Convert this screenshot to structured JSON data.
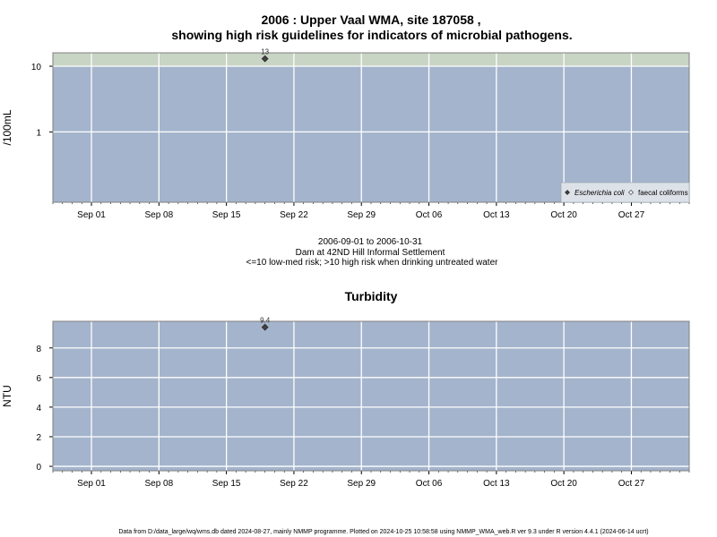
{
  "page": {
    "title_line1": "2006 : Upper Vaal WMA, site 187058 ,",
    "title_line2": "showing high risk guidelines for indicators of microbial pathogens.",
    "subtitle_line1": "2006-09-01 to 2006-10-31",
    "subtitle_line2": "Dam at 42ND Hill Informal Settlement",
    "subtitle_line3": "<=10 low-med risk; >10 high risk when drinking untreated water",
    "footer": "Data from D:/data_large/wq/wms.db dated 2024-08-27, mainly NMMP programme. Plotted on 2024-10-25 10:58:58 using NMMP_WMA_web.R ver 9.3 under R version 4.4.1 (2024-06-14 ucrt)"
  },
  "colors": {
    "panel_bg": "#a4b4cc",
    "high_risk_band": "#c8d4c4",
    "grid": "#ffffff",
    "marker": "#404040",
    "axis": "#808080"
  },
  "chart_data": [
    {
      "type": "scatter",
      "title": "",
      "ylabel": "/100mL",
      "yscale": "log",
      "ylim": [
        0.085,
        16
      ],
      "yticks": [
        1,
        10
      ],
      "ytick_labels": [
        "1",
        "10"
      ],
      "xlim": [
        "2006-08-28",
        "2006-11-02"
      ],
      "xticks": [
        "2006-09-01",
        "2006-09-08",
        "2006-09-15",
        "2006-09-22",
        "2006-09-29",
        "2006-10-06",
        "2006-10-13",
        "2006-10-20",
        "2006-10-27"
      ],
      "xtick_labels": [
        "Sep 01",
        "Sep 08",
        "Sep 15",
        "Sep 22",
        "Sep 29",
        "Oct 06",
        "Oct 13",
        "Oct 20",
        "Oct 27"
      ],
      "threshold": 10,
      "grid": true,
      "legend_position": "bottom-right",
      "legend": [
        {
          "label": "Escherichia coli",
          "marker": "filled-diamond",
          "italic": true
        },
        {
          "label": "faecal coliforms",
          "marker": "open-diamond",
          "italic": false
        }
      ],
      "series": [
        {
          "name": "Escherichia coli",
          "x": [
            "2006-09-19"
          ],
          "y": [
            13
          ],
          "labels": [
            "13"
          ]
        }
      ]
    },
    {
      "type": "scatter",
      "title": "Turbidity",
      "ylabel": "NTU",
      "yscale": "linear",
      "ylim": [
        -0.3,
        9.8
      ],
      "yticks": [
        0,
        2,
        4,
        6,
        8
      ],
      "ytick_labels": [
        "0",
        "2",
        "4",
        "6",
        "8"
      ],
      "xlim": [
        "2006-08-28",
        "2006-11-02"
      ],
      "xticks": [
        "2006-09-01",
        "2006-09-08",
        "2006-09-15",
        "2006-09-22",
        "2006-09-29",
        "2006-10-06",
        "2006-10-13",
        "2006-10-20",
        "2006-10-27"
      ],
      "xtick_labels": [
        "Sep 01",
        "Sep 08",
        "Sep 15",
        "Sep 22",
        "Sep 29",
        "Oct 06",
        "Oct 13",
        "Oct 20",
        "Oct 27"
      ],
      "grid": true,
      "series": [
        {
          "name": "",
          "x": [
            "2006-09-19"
          ],
          "y": [
            9.4
          ],
          "labels": [
            "9.4"
          ]
        }
      ]
    }
  ]
}
